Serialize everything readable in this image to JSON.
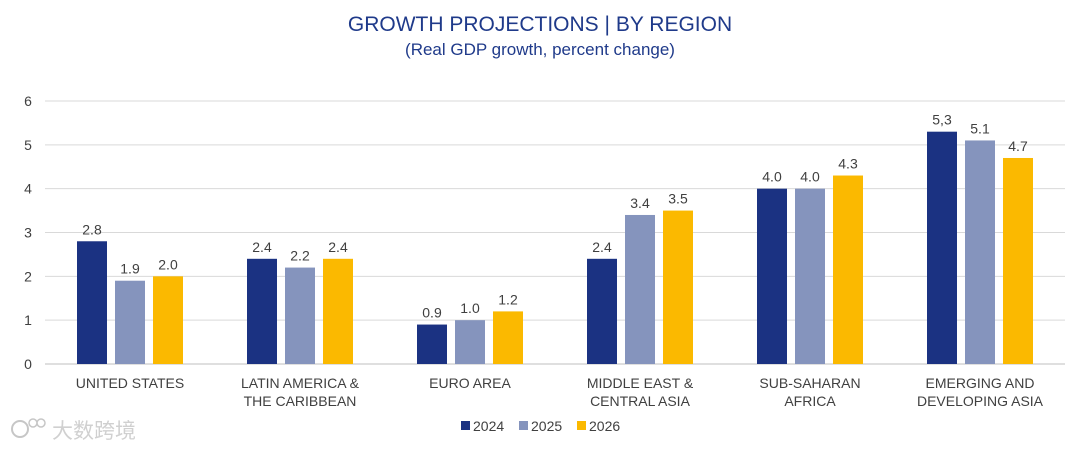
{
  "chart_data": {
    "type": "bar",
    "title": "GROWTH PROJECTIONS | BY REGION",
    "subtitle": "(Real GDP growth, percent change)",
    "xlabel": "",
    "ylabel": "",
    "ylim": [
      0,
      6
    ],
    "yticks": [
      "0",
      "1",
      "2",
      "3",
      "4",
      "5",
      "6"
    ],
    "grid": true,
    "legend_position": "bottom",
    "categories": [
      [
        "UNITED STATES"
      ],
      [
        "LATIN AMERICA &",
        "THE CARIBBEAN"
      ],
      [
        "EURO AREA"
      ],
      [
        "MIDDLE EAST &",
        "CENTRAL ASIA"
      ],
      [
        "SUB-SAHARAN",
        "AFRICA"
      ],
      [
        "EMERGING AND",
        "DEVELOPING ASIA"
      ]
    ],
    "series": [
      {
        "name": "2024",
        "color": "#1b3282",
        "values": [
          2.8,
          2.4,
          0.9,
          2.4,
          4.0,
          5.3
        ],
        "labels": [
          "2.8",
          "2.4",
          "0.9",
          "2.4",
          "4.0",
          "5,3"
        ]
      },
      {
        "name": "2025",
        "color": "#8594bd",
        "values": [
          1.9,
          2.2,
          1.0,
          3.4,
          4.0,
          5.1
        ],
        "labels": [
          "1.9",
          "2.2",
          "1.0",
          "3.4",
          "4.0",
          "5.1"
        ]
      },
      {
        "name": "2026",
        "color": "#fbb900",
        "values": [
          2.0,
          2.4,
          1.2,
          3.5,
          4.3,
          4.7
        ],
        "labels": [
          "2.0",
          "2.4",
          "1.2",
          "3.5",
          "4.3",
          "4.7"
        ]
      }
    ]
  },
  "watermark": "大数跨境",
  "colors": {
    "title": "#1f3a8a",
    "text": "#404040",
    "grid": "#d9d9d9"
  }
}
